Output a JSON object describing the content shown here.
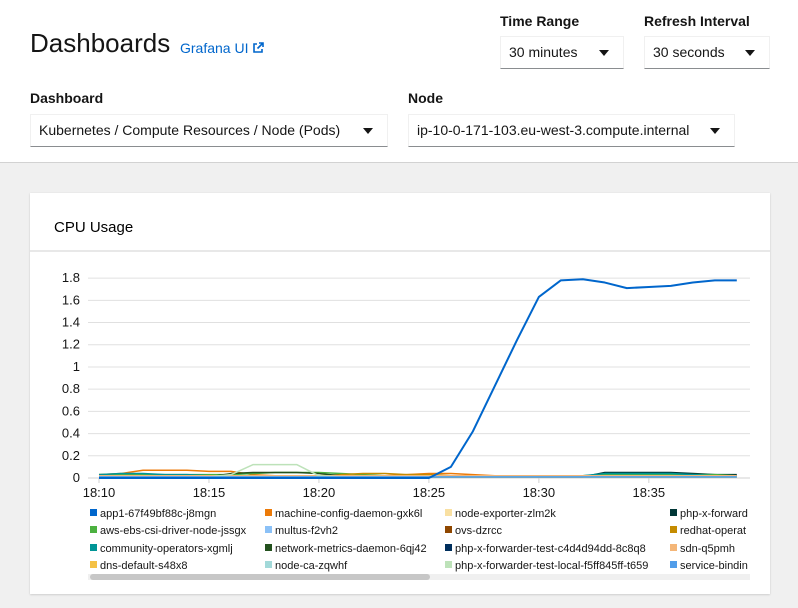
{
  "header": {
    "title": "Dashboards",
    "link": "Grafana UI"
  },
  "controls": {
    "time_range": {
      "label": "Time Range",
      "value": "30 minutes"
    },
    "refresh_interval": {
      "label": "Refresh Interval",
      "value": "30 seconds"
    },
    "dashboard": {
      "label": "Dashboard",
      "value": "Kubernetes / Compute Resources / Node (Pods)"
    },
    "node": {
      "label": "Node",
      "value": "ip-10-0-171-103.eu-west-3.compute.internal"
    }
  },
  "chart_data": {
    "type": "line",
    "title": "CPU Usage",
    "x": [
      1090,
      1091,
      1092,
      1093,
      1094,
      1095,
      1096,
      1097,
      1098,
      1099,
      1100,
      1101,
      1102,
      1103,
      1104,
      1105,
      1106,
      1107,
      1108,
      1109,
      1110,
      1111,
      1112,
      1113,
      1114,
      1115,
      1116,
      1117,
      1118,
      1119
    ],
    "xlim": [
      1089.5,
      1119.6
    ],
    "xticks": [
      {
        "value": 1090,
        "label": "18:10"
      },
      {
        "value": 1095,
        "label": "18:15"
      },
      {
        "value": 1100,
        "label": "18:20"
      },
      {
        "value": 1105,
        "label": "18:25"
      },
      {
        "value": 1110,
        "label": "18:30"
      },
      {
        "value": 1115,
        "label": "18:35"
      }
    ],
    "ylim": [
      0,
      1.9
    ],
    "yticks": [
      0,
      0.2,
      0.4,
      0.6,
      0.8,
      1,
      1.2,
      1.4,
      1.6,
      1.8
    ],
    "grid": true,
    "series": [
      {
        "name": "app1-67f49bf88c-j8mgn",
        "color": "#0066cc",
        "values": [
          0,
          0,
          0,
          0,
          0,
          0,
          0,
          0,
          0,
          0,
          0,
          0,
          0,
          0,
          0,
          0,
          0.1,
          0.42,
          0.83,
          1.24,
          1.63,
          1.78,
          1.79,
          1.76,
          1.71,
          1.72,
          1.73,
          1.76,
          1.78,
          1.78
        ]
      },
      {
        "name": "machine-config-daemon-gxk6l",
        "color": "#ec7a08",
        "values": [
          0.03,
          0.04,
          0.07,
          0.07,
          0.07,
          0.06,
          0.06,
          0.03,
          0.02,
          0.02,
          0.02,
          0.01,
          0.01,
          0.02,
          0.03,
          0.04,
          0.04,
          0.03,
          0.02,
          0.02,
          0.02,
          0.02,
          0.02,
          0.02,
          0.02,
          0.02,
          0.02,
          0.02,
          0.02,
          0.02
        ]
      },
      {
        "name": "node-exporter-zlm2k",
        "color": "#f9e0a2",
        "values": [
          0.01,
          0.01,
          0.01,
          0.01,
          0.01,
          0.01,
          0.01,
          0.01,
          0.01,
          0.01,
          0.01,
          0.01,
          0.01,
          0.01,
          0.01,
          0.01,
          0.01,
          0.01,
          0.01,
          0.01,
          0.01,
          0.01,
          0.01,
          0.01,
          0.01,
          0.01,
          0.01,
          0.01,
          0.01,
          0.01
        ]
      },
      {
        "name": "php-x-forward",
        "color": "#003737",
        "values": [
          0.01,
          0.01,
          0.01,
          0.01,
          0.01,
          0.01,
          0.01,
          0.01,
          0.01,
          0.01,
          0.01,
          0.01,
          0.01,
          0.01,
          0.01,
          0.01,
          0.01,
          0.01,
          0.01,
          0.01,
          0.01,
          0.01,
          0.01,
          0.05,
          0.05,
          0.05,
          0.05,
          0.04,
          0.03,
          0.03
        ]
      },
      {
        "name": "aws-ebs-csi-driver-node-jssgx",
        "color": "#4cb140",
        "values": [
          0.03,
          0.03,
          0.03,
          0.03,
          0.03,
          0.03,
          0.03,
          0.04,
          0.05,
          0.05,
          0.05,
          0.04,
          0.03,
          0.02,
          0.02,
          0.02,
          0.02,
          0.02,
          0.02,
          0.02,
          0.02,
          0.02,
          0.02,
          0.03,
          0.03,
          0.03,
          0.03,
          0.03,
          0.03,
          0.02
        ]
      },
      {
        "name": "multus-f2vh2",
        "color": "#8bc1f7",
        "values": [
          0.01,
          0.01,
          0.01,
          0.01,
          0.01,
          0.01,
          0.01,
          0.01,
          0.01,
          0.01,
          0.01,
          0.01,
          0.01,
          0.01,
          0.01,
          0.01,
          0.01,
          0.01,
          0.01,
          0.01,
          0.01,
          0.01,
          0.01,
          0.01,
          0.01,
          0.01,
          0.01,
          0.01,
          0.01,
          0.01
        ]
      },
      {
        "name": "ovs-dzrcc",
        "color": "#8f4700",
        "values": [
          0.02,
          0.02,
          0.02,
          0.02,
          0.02,
          0.02,
          0.02,
          0.02,
          0.02,
          0.02,
          0.02,
          0.02,
          0.02,
          0.02,
          0.02,
          0.02,
          0.02,
          0.02,
          0.02,
          0.02,
          0.02,
          0.02,
          0.02,
          0.02,
          0.02,
          0.02,
          0.02,
          0.02,
          0.02,
          0.02
        ]
      },
      {
        "name": "redhat-operat",
        "color": "#c58c00",
        "values": [
          0.02,
          0.02,
          0.02,
          0.02,
          0.02,
          0.02,
          0.02,
          0.02,
          0.02,
          0.02,
          0.02,
          0.03,
          0.04,
          0.04,
          0.03,
          0.03,
          0.02,
          0.02,
          0.02,
          0.02,
          0.02,
          0.02,
          0.02,
          0.02,
          0.02,
          0.02,
          0.02,
          0.02,
          0.02,
          0.02
        ]
      },
      {
        "name": "community-operators-xgmlj",
        "color": "#009596",
        "values": [
          0.03,
          0.04,
          0.04,
          0.03,
          0.03,
          0.02,
          0.02,
          0.02,
          0.02,
          0.02,
          0.02,
          0.02,
          0.02,
          0.02,
          0.02,
          0.02,
          0.02,
          0.02,
          0.02,
          0.02,
          0.02,
          0.02,
          0.02,
          0.04,
          0.04,
          0.04,
          0.04,
          0.03,
          0.02,
          0.02
        ]
      },
      {
        "name": "network-metrics-daemon-6qj42",
        "color": "#23511e",
        "values": [
          0.01,
          0.01,
          0.01,
          0.01,
          0.01,
          0.01,
          0.04,
          0.05,
          0.05,
          0.05,
          0.04,
          0.02,
          0.01,
          0.01,
          0.01,
          0.01,
          0.01,
          0.01,
          0.01,
          0.01,
          0.01,
          0.01,
          0.01,
          0.01,
          0.01,
          0.01,
          0.01,
          0.01,
          0.01,
          0.01
        ]
      },
      {
        "name": "php-x-forwarder-test-c4d4d94dd-8c8q8",
        "color": "#002f5d",
        "values": [
          0.01,
          0.01,
          0.01,
          0.01,
          0.01,
          0.01,
          0.01,
          0.01,
          0.01,
          0.01,
          0.01,
          0.01,
          0.01,
          0.01,
          0.01,
          0.01,
          0.01,
          0.01,
          0.01,
          0.01,
          0.01,
          0.01,
          0.01,
          0.01,
          0.01,
          0.01,
          0.01,
          0.01,
          0.01,
          0.01
        ]
      },
      {
        "name": "sdn-q5pmh",
        "color": "#f4b678",
        "values": [
          0.02,
          0.02,
          0.02,
          0.02,
          0.02,
          0.02,
          0.02,
          0.02,
          0.02,
          0.02,
          0.02,
          0.02,
          0.02,
          0.02,
          0.02,
          0.02,
          0.02,
          0.02,
          0.02,
          0.02,
          0.02,
          0.02,
          0.02,
          0.02,
          0.02,
          0.02,
          0.02,
          0.02,
          0.02,
          0.02
        ]
      },
      {
        "name": "dns-default-s48x8",
        "color": "#f4c145",
        "values": [
          0.01,
          0.01,
          0.01,
          0.01,
          0.01,
          0.01,
          0.01,
          0.01,
          0.01,
          0.01,
          0.01,
          0.01,
          0.01,
          0.01,
          0.01,
          0.01,
          0.01,
          0.01,
          0.01,
          0.01,
          0.01,
          0.01,
          0.01,
          0.01,
          0.01,
          0.01,
          0.01,
          0.01,
          0.01,
          0.01
        ]
      },
      {
        "name": "node-ca-zqwhf",
        "color": "#a2d9d9",
        "values": [
          0.01,
          0.01,
          0.01,
          0.01,
          0.01,
          0.01,
          0.01,
          0.01,
          0.01,
          0.01,
          0.01,
          0.01,
          0.01,
          0.01,
          0.01,
          0.01,
          0.01,
          0.01,
          0.01,
          0.01,
          0.01,
          0.01,
          0.01,
          0.01,
          0.01,
          0.01,
          0.01,
          0.01,
          0.01,
          0.01
        ]
      },
      {
        "name": "php-x-forwarder-test-local-f5ff845ff-t659",
        "color": "#bde2b9",
        "values": [
          0.01,
          0.01,
          0.01,
          0.01,
          0.01,
          0.01,
          0.03,
          0.12,
          0.12,
          0.12,
          0.02,
          0.01,
          0.01,
          0.01,
          0.01,
          0.01,
          0.01,
          0.01,
          0.01,
          0.01,
          0.01,
          0.01,
          0.01,
          0.01,
          0.01,
          0.01,
          0.01,
          0.01,
          0.01,
          0.01
        ]
      },
      {
        "name": "service-bindin",
        "color": "#519de9",
        "values": [
          0.01,
          0.01,
          0.01,
          0.01,
          0.01,
          0.01,
          0.01,
          0.01,
          0.01,
          0.01,
          0.01,
          0.01,
          0.01,
          0.01,
          0.01,
          0.01,
          0.01,
          0.01,
          0.01,
          0.01,
          0.01,
          0.01,
          0.01,
          0.01,
          0.01,
          0.01,
          0.01,
          0.01,
          0.01,
          0.01
        ]
      }
    ]
  }
}
